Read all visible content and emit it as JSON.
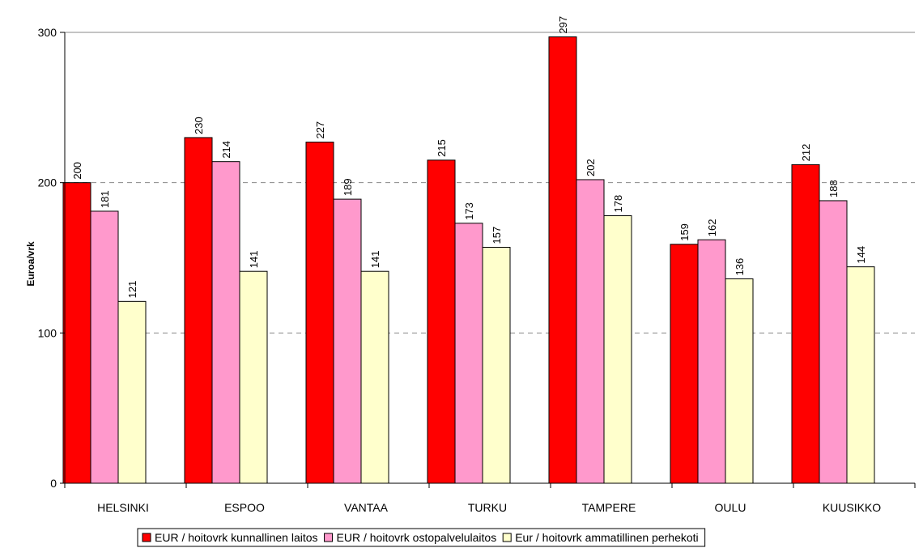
{
  "chart_data": {
    "type": "bar",
    "ylabel": "Euroa/vrk",
    "xlabel": "",
    "ylim": [
      0,
      300
    ],
    "yticks": [
      0,
      100,
      200,
      300
    ],
    "grid": "horizontal-dashed",
    "legend_position": "bottom",
    "categories": [
      "HELSINKI",
      "ESPOO",
      "VANTAA",
      "TURKU",
      "TAMPERE",
      "OULU",
      "KUUSIKKO"
    ],
    "series": [
      {
        "name": "EUR / hoitovrk kunnallinen laitos",
        "color": "#ff0000",
        "values": [
          200,
          230,
          227,
          215,
          297,
          159,
          212
        ]
      },
      {
        "name": "EUR / hoitovrk ostopalvelulaitos",
        "color": "#ff99cc",
        "values": [
          181,
          214,
          189,
          173,
          202,
          162,
          188
        ]
      },
      {
        "name": "Eur / hoitovrk ammatillinen perhekoti",
        "color": "#ffffcc",
        "values": [
          121,
          141,
          141,
          157,
          178,
          136,
          144
        ]
      }
    ]
  }
}
